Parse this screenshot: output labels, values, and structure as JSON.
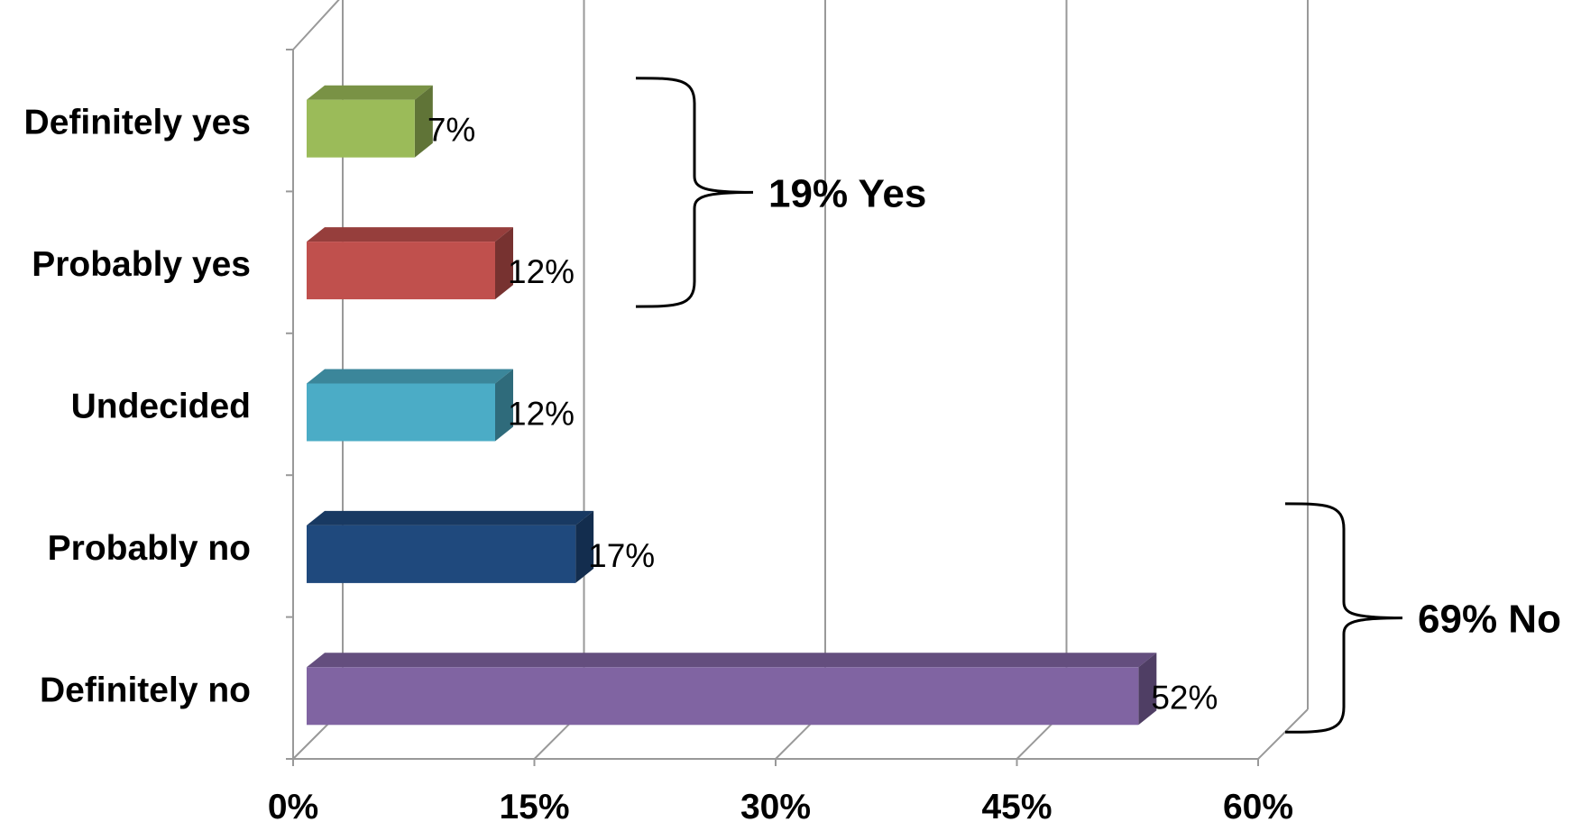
{
  "chart_data": {
    "type": "bar",
    "orientation": "horizontal",
    "style": "3d",
    "title": "",
    "xlabel": "",
    "ylabel": "",
    "categories": [
      "Definitely yes",
      "Probably yes",
      "Undecided",
      "Probably no",
      "Definitely no"
    ],
    "values": [
      7,
      12,
      12,
      17,
      52
    ],
    "value_labels": [
      "7%",
      "12%",
      "12%",
      "17%",
      "52%"
    ],
    "colors": [
      "#9bbb59",
      "#c0504d",
      "#4bacc6",
      "#1f497d",
      "#8064a2"
    ],
    "xlim": [
      0,
      60
    ],
    "xticks": [
      0,
      15,
      30,
      45,
      60
    ],
    "xtick_labels": [
      "0%",
      "15%",
      "30%",
      "45%",
      "60%"
    ],
    "grid": true,
    "legend": "none",
    "annotations": [
      {
        "text": "19% Yes",
        "spans": [
          "Definitely yes",
          "Probably yes"
        ]
      },
      {
        "text": "69% No",
        "spans": [
          "Probably no",
          "Definitely no"
        ]
      }
    ]
  }
}
